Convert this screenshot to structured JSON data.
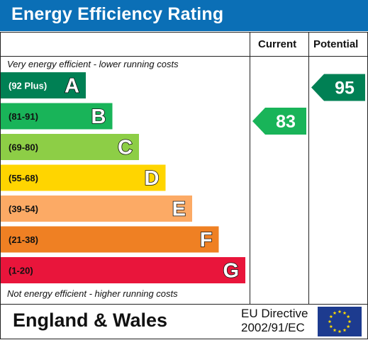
{
  "header": {
    "title": "Energy Efficiency Rating"
  },
  "columns": {
    "current_label": "Current",
    "potential_label": "Potential"
  },
  "notes": {
    "top": "Very energy efficient - lower running costs",
    "bottom": "Not energy efficient - higher running costs"
  },
  "footer": {
    "region": "England & Wales",
    "directive_line1": "EU Directive",
    "directive_line2": "2002/91/EC",
    "flag_icon": "eu-flag-icon"
  },
  "chart_data": {
    "type": "bar",
    "title": "Energy Efficiency Rating",
    "categories": [
      "A",
      "B",
      "C",
      "D",
      "E",
      "F",
      "G"
    ],
    "bands": [
      {
        "letter": "A",
        "range": "(92 Plus)",
        "color": "#008054"
      },
      {
        "letter": "B",
        "range": "(81-91)",
        "color": "#19b459"
      },
      {
        "letter": "C",
        "range": "(69-80)",
        "color": "#8dce46"
      },
      {
        "letter": "D",
        "range": "(55-68)",
        "color": "#ffd500"
      },
      {
        "letter": "E",
        "range": "(39-54)",
        "color": "#fcaa65"
      },
      {
        "letter": "F",
        "range": "(21-38)",
        "color": "#ef8023"
      },
      {
        "letter": "G",
        "range": "(1-20)",
        "color": "#e9153b"
      }
    ],
    "series": [
      {
        "name": "Current",
        "value": 83,
        "band": "B",
        "color": "#19b459"
      },
      {
        "name": "Potential",
        "value": 95,
        "band": "A",
        "color": "#008054"
      }
    ]
  }
}
